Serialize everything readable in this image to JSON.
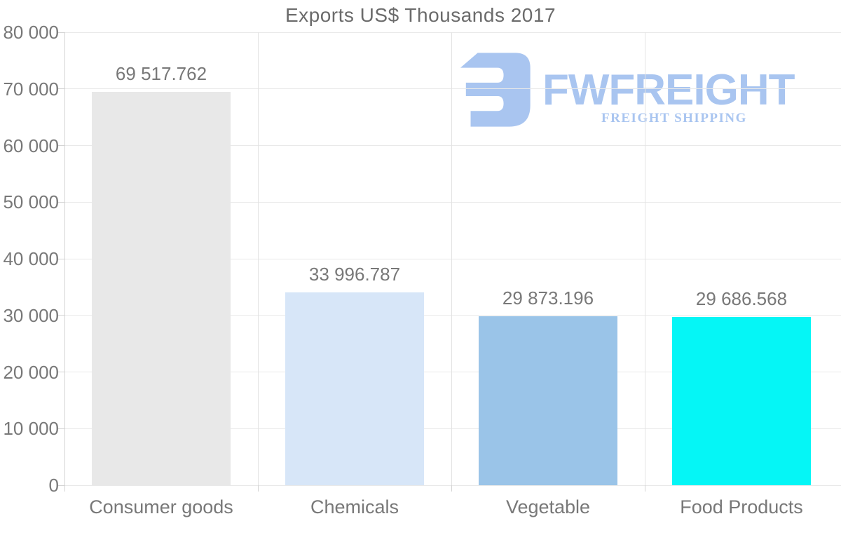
{
  "title": "Exports US$ Thousands 2017",
  "logo": {
    "wordmark": "FWFREIGHT",
    "subtitle": "FREIGHT SHIPPING",
    "color": "#a6c3f0"
  },
  "chart_data": {
    "type": "bar",
    "title": "Exports US$ Thousands 2017",
    "categories": [
      "Consumer goods",
      "Chemicals",
      "Vegetable",
      "Food Products"
    ],
    "values": [
      69517.762,
      33996.787,
      29873.196,
      29686.568
    ],
    "value_labels": [
      "69 517.762",
      "33 996.787",
      "29 873.196",
      "29 686.568"
    ],
    "bar_colors": [
      "#e8e8e8",
      "#d7e6f8",
      "#9ac4e8",
      "#05f6f6"
    ],
    "xlabel": "",
    "ylabel": "",
    "ylim": [
      0,
      80000
    ],
    "ytick_step": 10000,
    "ytick_labels": [
      "0",
      "10 000",
      "20 000",
      "30 000",
      "40 000",
      "50 000",
      "60 000",
      "70 000",
      "80 000"
    ],
    "grid": true,
    "legend": false
  },
  "colors": {
    "background": "#ffffff",
    "horizontal_grid": "#e9e9e9",
    "vertical_grid": "#e3e3e3",
    "axis": "#d4d4d4",
    "title_text": "#6b6b6b",
    "label_text": "#787878"
  }
}
